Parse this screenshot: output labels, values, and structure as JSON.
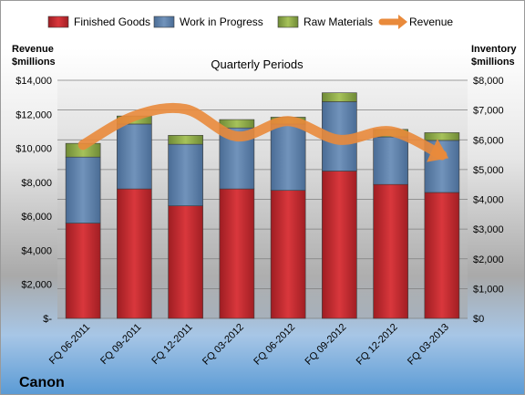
{
  "chart_data": {
    "type": "bar",
    "subtitle": "Quarterly Periods",
    "company": "Canon",
    "categories": [
      "FQ 06-2011",
      "FQ 09-2011",
      "FQ 12-2011",
      "FQ 03-2012",
      "FQ 06-2012",
      "FQ 09-2012",
      "FQ 12-2012",
      "FQ 03-2013"
    ],
    "left_axis": {
      "title_line1": "Revenue",
      "title_line2": "$millions",
      "ylim": [
        0,
        14000
      ],
      "ticks": [
        0,
        2000,
        4000,
        6000,
        8000,
        10000,
        12000,
        14000
      ],
      "tick_labels": [
        "$-",
        "$2,000",
        "$4,000",
        "$6,000",
        "$8,000",
        "$10,000",
        "$12,000",
        "$14,000"
      ]
    },
    "right_axis": {
      "title_line1": "Inventory",
      "title_line2": "$millions",
      "ylim": [
        0,
        8000
      ],
      "ticks": [
        0,
        1000,
        2000,
        3000,
        4000,
        5000,
        6000,
        7000,
        8000
      ],
      "tick_labels": [
        "$0",
        "$1,000",
        "$2,000",
        "$3,000",
        "$4,000",
        "$5,000",
        "$6,000",
        "$7,000",
        "$8,000"
      ]
    },
    "stacked": true,
    "series": [
      {
        "name": "Finished Goods",
        "axis": "right",
        "color": "#c0262c",
        "values": [
          3200,
          4350,
          3780,
          4350,
          4300,
          4950,
          4500,
          4230
        ]
      },
      {
        "name": "Work in Progress",
        "axis": "right",
        "color": "#5a7fa9",
        "values": [
          2220,
          2180,
          2070,
          2050,
          2230,
          2330,
          1600,
          1750
        ]
      },
      {
        "name": "Raw Materials",
        "axis": "right",
        "color": "#8ea94a",
        "values": [
          460,
          270,
          300,
          280,
          230,
          300,
          250,
          260
        ]
      },
      {
        "name": "Revenue",
        "type": "line",
        "axis": "left",
        "color": "#e98a3b",
        "values": [
          10200,
          11900,
          12300,
          10700,
          11600,
          10500,
          11000,
          9600
        ]
      }
    ],
    "legend_position": "top",
    "grid": true
  }
}
